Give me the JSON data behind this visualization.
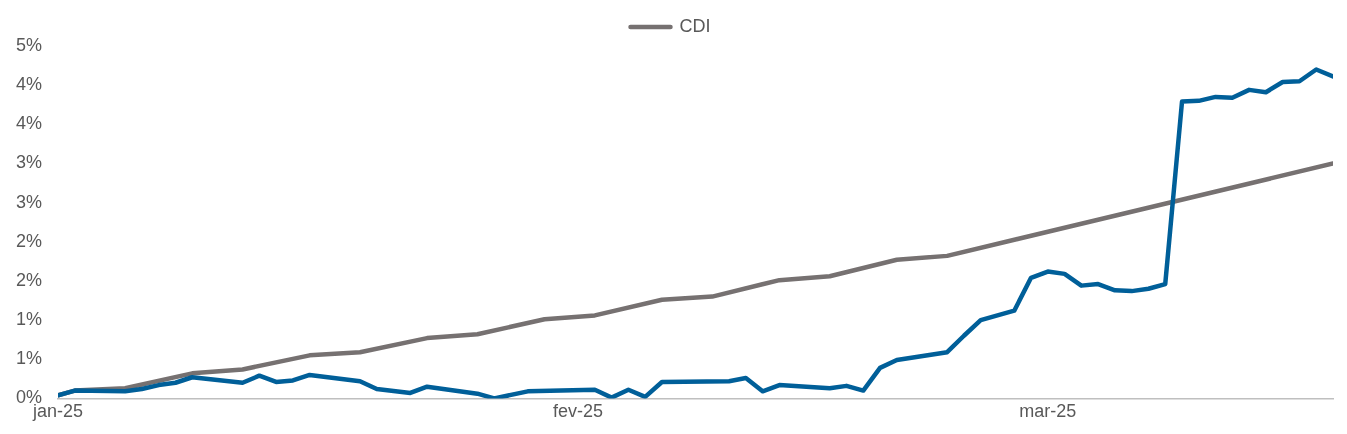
{
  "chart_data": {
    "type": "line",
    "legend": "top",
    "marker": "none",
    "line_style": "solid",
    "grid": false,
    "xlim": [
      "2025-01-01",
      "2025-03-18"
    ],
    "xticks": [
      {
        "value": "2025-01-01",
        "label": "jan-25"
      },
      {
        "value": "2025-02-01",
        "label": "fev-25"
      },
      {
        "value": "2025-03-01",
        "label": "mar-25"
      }
    ],
    "ylim": [
      0,
      4.5
    ],
    "yticks": [
      {
        "value": 0,
        "label": "0%"
      },
      {
        "value": 0.5,
        "label": "1%"
      },
      {
        "value": 1,
        "label": "1%"
      },
      {
        "value": 1.5,
        "label": "2%"
      },
      {
        "value": 2,
        "label": "2%"
      },
      {
        "value": 2.5,
        "label": "3%"
      },
      {
        "value": 3,
        "label": "3%"
      },
      {
        "value": 3.5,
        "label": "4%"
      },
      {
        "value": 4,
        "label": "4%"
      },
      {
        "value": 4.5,
        "label": "5%"
      }
    ],
    "series": [
      {
        "color": "#005f99",
        "x": [
          "2025-01-01",
          "2025-01-02",
          "2025-01-05",
          "2025-01-06",
          "2025-01-07",
          "2025-01-08",
          "2025-01-09",
          "2025-01-12",
          "2025-01-13",
          "2025-01-14",
          "2025-01-15",
          "2025-01-16",
          "2025-01-19",
          "2025-01-20",
          "2025-01-22",
          "2025-01-23",
          "2025-01-26",
          "2025-01-27",
          "2025-01-29",
          "2025-02-02",
          "2025-02-03",
          "2025-02-04",
          "2025-02-05",
          "2025-02-06",
          "2025-02-10",
          "2025-02-11",
          "2025-02-12",
          "2025-02-13",
          "2025-02-16",
          "2025-02-17",
          "2025-02-18",
          "2025-02-19",
          "2025-02-20",
          "2025-02-23",
          "2025-02-24",
          "2025-02-25",
          "2025-02-27",
          "2025-02-28",
          "2025-03-01",
          "2025-03-02",
          "2025-03-03",
          "2025-03-04",
          "2025-03-05",
          "2025-03-06",
          "2025-03-07",
          "2025-03-08",
          "2025-03-09",
          "2025-03-10",
          "2025-03-11",
          "2025-03-12",
          "2025-03-13",
          "2025-03-14",
          "2025-03-15",
          "2025-03-16",
          "2025-03-17",
          "2025-03-18"
        ],
        "values": [
          0.04,
          0.1,
          0.09,
          0.12,
          0.17,
          0.2,
          0.27,
          0.2,
          0.29,
          0.21,
          0.23,
          0.3,
          0.22,
          0.12,
          0.07,
          0.15,
          0.06,
          0.0,
          0.09,
          0.11,
          0.01,
          0.11,
          0.02,
          0.21,
          0.22,
          0.26,
          0.09,
          0.17,
          0.13,
          0.16,
          0.1,
          0.39,
          0.49,
          0.59,
          0.8,
          1.0,
          1.12,
          1.54,
          1.62,
          1.59,
          1.44,
          1.46,
          1.38,
          1.37,
          1.4,
          1.46,
          3.79,
          3.8,
          3.85,
          3.84,
          3.94,
          3.91,
          4.04,
          4.05,
          4.2,
          4.11
        ]
      },
      {
        "name": "CDI",
        "color": "#767171",
        "x": [
          "2025-01-01",
          "2025-01-02",
          "2025-01-05",
          "2025-01-09",
          "2025-01-12",
          "2025-01-16",
          "2025-01-19",
          "2025-01-23",
          "2025-01-26",
          "2025-01-30",
          "2025-02-02",
          "2025-02-06",
          "2025-02-09",
          "2025-02-13",
          "2025-02-16",
          "2025-02-20",
          "2025-02-23",
          "2025-03-18"
        ],
        "values": [
          0.04,
          0.1,
          0.13,
          0.32,
          0.37,
          0.55,
          0.59,
          0.77,
          0.82,
          1.01,
          1.06,
          1.26,
          1.3,
          1.51,
          1.56,
          1.77,
          1.82,
          3.0
        ]
      }
    ]
  }
}
